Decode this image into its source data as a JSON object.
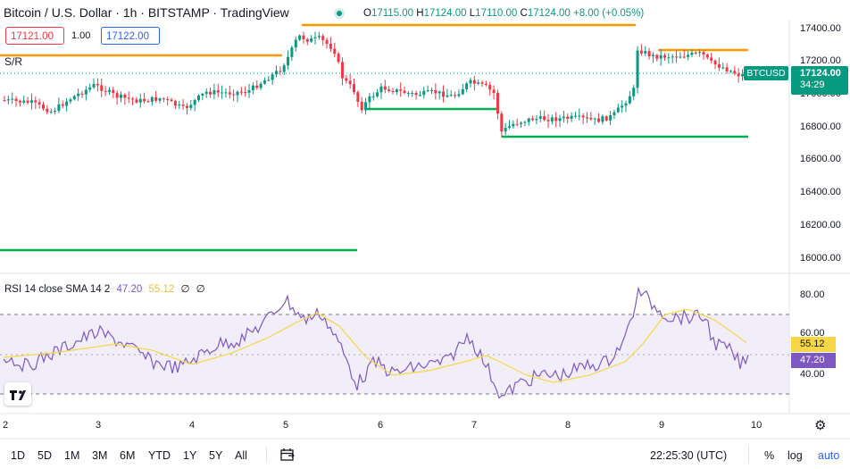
{
  "header": {
    "title": "Bitcoin / U.S. Dollar · 1h · BITSTAMP · TradingView",
    "o_label": "O",
    "o_value": "17115.00",
    "h_label": "H",
    "h_value": "17124.00",
    "l_label": "L",
    "l_value": "17110.00",
    "c_label": "C",
    "c_value": "17124.00",
    "change": "+8.00 (+0.05%)",
    "sell_price": "17121.00",
    "spread": "1.00",
    "buy_price": "17122.00",
    "sr_label": "S/R"
  },
  "price_scale": {
    "ticks": [
      "17400.00",
      "17200.00",
      "17000.00",
      "16800.00",
      "16600.00",
      "16400.00",
      "16200.00",
      "16000.00"
    ],
    "symbol_tag": "BTCUSD",
    "last_price": "17124.00",
    "countdown": "34:29"
  },
  "rsi": {
    "label": "RSI 14 close SMA 14 2",
    "rsi_value": "47.20",
    "sma_value": "55.12",
    "extra1": "∅",
    "extra2": "∅",
    "ticks": [
      "80.00",
      "60.00",
      "40.00"
    ]
  },
  "time_axis": [
    "2",
    "3",
    "4",
    "5",
    "6",
    "7",
    "8",
    "9",
    "10"
  ],
  "toolbar": {
    "ranges": [
      "1D",
      "5D",
      "1M",
      "3M",
      "6M",
      "YTD",
      "1Y",
      "5Y",
      "All"
    ],
    "clock": "22:25:30 (UTC)",
    "percent": "%",
    "log": "log",
    "auto": "auto"
  },
  "colors": {
    "up": "#089981",
    "down": "#f23645",
    "resistance": "#ff9800",
    "support": "#00b050",
    "rsi": "#7e57c2",
    "rsi_sma": "#f5d645"
  },
  "chart_data": {
    "type": "candlestick",
    "price_axis": {
      "range": [
        15950,
        17500
      ],
      "ticks": [
        17400,
        17200,
        17000,
        16800,
        16600,
        16400,
        16200,
        16000
      ]
    },
    "rsi_axis": {
      "range": [
        25,
        88
      ],
      "ticks": [
        80,
        60,
        40
      ],
      "band": [
        30,
        70
      ]
    },
    "last_price": 17124,
    "resistance_levels": [
      17260,
      17280,
      17420
    ],
    "support_levels": [
      16925,
      16740,
      16055
    ]
  }
}
